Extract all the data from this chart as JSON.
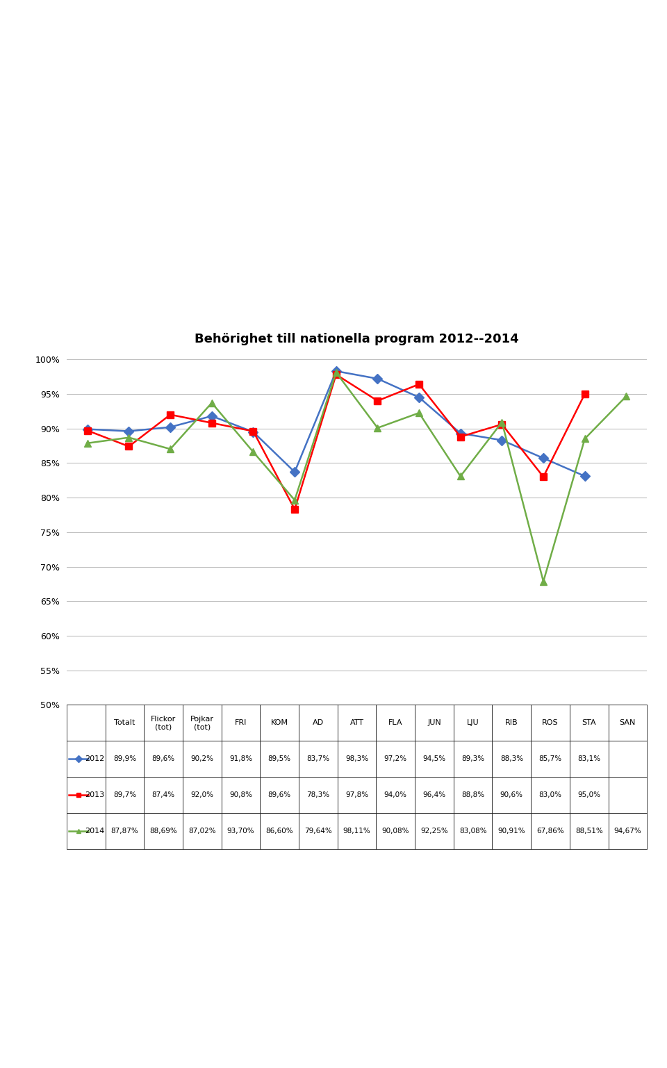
{
  "title": "Behörighet till nationella program 2012--2014",
  "categories": [
    "Totalt",
    "Flickor\n(tot)",
    "Pojkar\n(tot)",
    "FRI",
    "KOM",
    "AD",
    "ATT",
    "FLA",
    "JUN",
    "LJU",
    "RIB",
    "ROS",
    "STA",
    "SAN"
  ],
  "series": {
    "2012": {
      "values": [
        89.9,
        89.6,
        90.2,
        91.8,
        89.5,
        83.7,
        98.3,
        97.2,
        94.5,
        89.3,
        88.3,
        85.7,
        83.1,
        null
      ],
      "color": "#4472C4",
      "marker": "D",
      "label": "2012"
    },
    "2013": {
      "values": [
        89.7,
        87.4,
        92.0,
        90.8,
        89.6,
        78.3,
        97.8,
        94.0,
        96.4,
        88.8,
        90.6,
        83.0,
        95.0,
        null
      ],
      "color": "#FF0000",
      "marker": "s",
      "label": "2013"
    },
    "2014": {
      "values": [
        87.87,
        88.69,
        87.02,
        93.7,
        86.6,
        79.64,
        98.11,
        90.08,
        92.25,
        83.08,
        90.91,
        67.86,
        88.51,
        94.67
      ],
      "color": "#70AD47",
      "marker": "^",
      "label": "2014"
    }
  },
  "ylim": [
    50,
    101
  ],
  "yticks": [
    50,
    55,
    60,
    65,
    70,
    75,
    80,
    85,
    90,
    95,
    100
  ],
  "grid_color": "#C0C0C0",
  "table_header": [
    "",
    "Totalt",
    "Flickor\n(tot)",
    "Pojkar\n(tot)",
    "FRI",
    "KOM",
    "AD",
    "ATT",
    "FLA",
    "JUN",
    "LJU",
    "RIB",
    "ROS",
    "STA",
    "SAN"
  ],
  "table_rows": [
    [
      "2012",
      "89,9%",
      "89,6%",
      "90,2%",
      "91,8%",
      "89,5%",
      "83,7%",
      "98,3%",
      "97,2%",
      "94,5%",
      "89,3%",
      "88,3%",
      "85,7%",
      "83,1%",
      ""
    ],
    [
      "2013",
      "89,7%",
      "87,4%",
      "92,0%",
      "90,8%",
      "89,6%",
      "78,3%",
      "97,8%",
      "94,0%",
      "96,4%",
      "88,8%",
      "90,6%",
      "83,0%",
      "95,0%",
      ""
    ],
    [
      "2014",
      "87,87%",
      "88,69%",
      "87,02%",
      "93,70%",
      "86,60%",
      "79,64%",
      "98,11%",
      "90,08%",
      "92,25%",
      "83,08%",
      "90,91%",
      "67,86%",
      "88,51%",
      "94,67%"
    ]
  ],
  "row_colors": [
    "#4472C4",
    "#FF0000",
    "#70AD47"
  ],
  "markers": [
    "D",
    "s",
    "^"
  ]
}
